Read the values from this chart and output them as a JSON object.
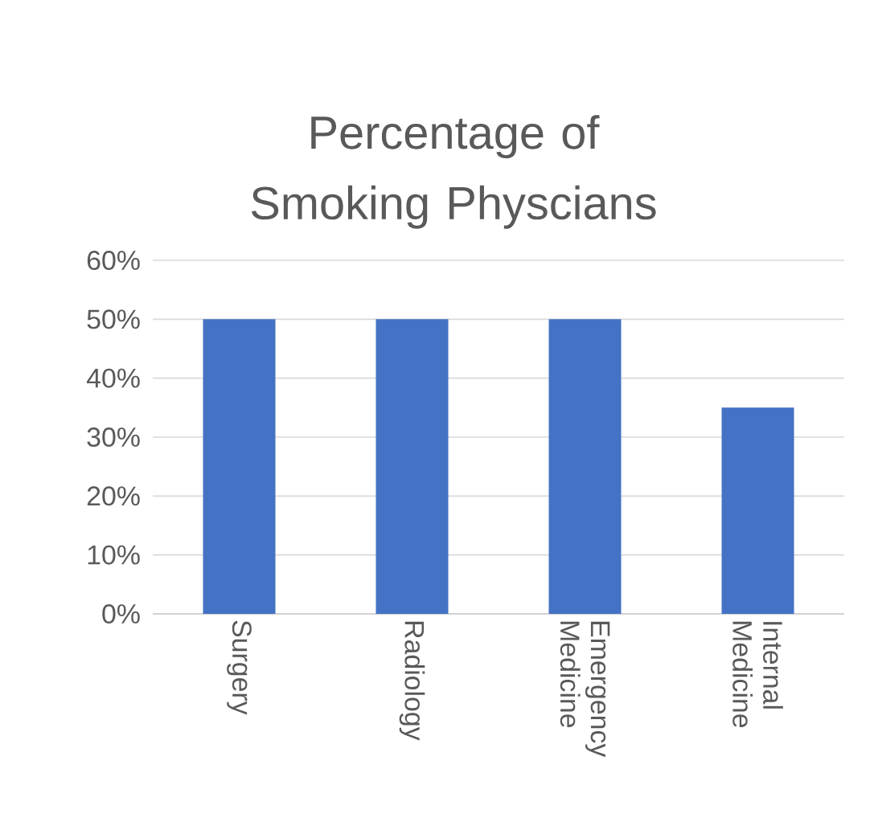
{
  "chart_data": {
    "type": "bar",
    "title": "Percentage of Smoking Physcians",
    "categories": [
      "Surgery",
      "Radiology",
      "Emergency Medicine",
      "Internal Medicine"
    ],
    "values": [
      50,
      50,
      50,
      35
    ],
    "color": "#4472c4",
    "ylim": [
      0,
      60
    ],
    "yticks": [
      {
        "value": 0,
        "label": "0%"
      },
      {
        "value": 10,
        "label": "10%"
      },
      {
        "value": 20,
        "label": "20%"
      },
      {
        "value": 30,
        "label": "30%"
      },
      {
        "value": 40,
        "label": "40%"
      },
      {
        "value": 50,
        "label": "50%"
      },
      {
        "value": 60,
        "label": "60%"
      }
    ],
    "grid": "y"
  }
}
